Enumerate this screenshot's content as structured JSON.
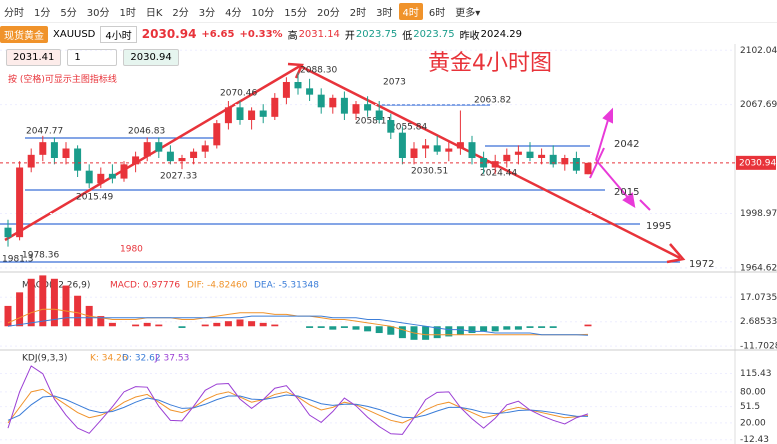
{
  "toolbar": {
    "periods": [
      "分时",
      "1分",
      "5分",
      "30分",
      "1时",
      "日K",
      "2分",
      "3分",
      "4分",
      "10分",
      "15分",
      "20分",
      "2时",
      "3时",
      "4时",
      "6时",
      "更多▾"
    ],
    "active_index": 14
  },
  "header": {
    "name": "现货黄金",
    "symbol": "XAUUSD",
    "period": "4小时",
    "price": "2030.94",
    "change": "+6.65",
    "change_pct": "+0.33%",
    "high_label": "高",
    "high": "2031.14",
    "open_label": "开",
    "open": "2023.75",
    "low_label": "低",
    "low": "2023.75",
    "prev_label": "昨收",
    "prev": "2024.29"
  },
  "order": {
    "buy": "2031.41",
    "qty": "1",
    "sell": "2030.94",
    "hint": "按 (空格)可显示主图指标线"
  },
  "main": {
    "title": "黄金4小时图",
    "ylim": [
      1962,
      2106
    ],
    "yticks": [
      2102.04,
      2067.69,
      1998.97,
      1964.62
    ],
    "last_price": 2030.94,
    "candles": [
      [
        1990,
        1995,
        1978,
        1984
      ],
      [
        1984,
        2032,
        1982,
        2028
      ],
      [
        2028,
        2040,
        2025,
        2036
      ],
      [
        2036,
        2048,
        2032,
        2044
      ],
      [
        2044,
        2047,
        2030,
        2034
      ],
      [
        2034,
        2044,
        2030,
        2040
      ],
      [
        2040,
        2042,
        2022,
        2026
      ],
      [
        2026,
        2030,
        2015,
        2018
      ],
      [
        2018,
        2028,
        2015,
        2024
      ],
      [
        2024,
        2030,
        2018,
        2021
      ],
      [
        2021,
        2032,
        2019,
        2030
      ],
      [
        2030,
        2038,
        2025,
        2035
      ],
      [
        2035,
        2047,
        2032,
        2044
      ],
      [
        2044,
        2047,
        2034,
        2038
      ],
      [
        2038,
        2042,
        2030,
        2032
      ],
      [
        2032,
        2036,
        2027,
        2034
      ],
      [
        2034,
        2040,
        2030,
        2038
      ],
      [
        2038,
        2045,
        2034,
        2042
      ],
      [
        2042,
        2058,
        2040,
        2056
      ],
      [
        2056,
        2070,
        2052,
        2066
      ],
      [
        2066,
        2070,
        2055,
        2058
      ],
      [
        2058,
        2066,
        2052,
        2064
      ],
      [
        2064,
        2068,
        2056,
        2060
      ],
      [
        2060,
        2075,
        2058,
        2072
      ],
      [
        2072,
        2085,
        2068,
        2082
      ],
      [
        2082,
        2088,
        2074,
        2078
      ],
      [
        2078,
        2084,
        2070,
        2074
      ],
      [
        2074,
        2078,
        2062,
        2066
      ],
      [
        2066,
        2074,
        2062,
        2072
      ],
      [
        2072,
        2076,
        2058,
        2062
      ],
      [
        2062,
        2070,
        2058,
        2068
      ],
      [
        2068,
        2073,
        2060,
        2064
      ],
      [
        2064,
        2070,
        2056,
        2058
      ],
      [
        2058,
        2062,
        2046,
        2050
      ],
      [
        2050,
        2054,
        2030,
        2034
      ],
      [
        2034,
        2044,
        2030,
        2040
      ],
      [
        2040,
        2046,
        2034,
        2042
      ],
      [
        2042,
        2048,
        2036,
        2038
      ],
      [
        2038,
        2044,
        2032,
        2040
      ],
      [
        2040,
        2064,
        2036,
        2044
      ],
      [
        2044,
        2048,
        2030,
        2034
      ],
      [
        2034,
        2038,
        2024,
        2028
      ],
      [
        2028,
        2036,
        2024,
        2032
      ],
      [
        2032,
        2040,
        2028,
        2036
      ],
      [
        2036,
        2042,
        2030,
        2038
      ],
      [
        2038,
        2044,
        2032,
        2034
      ],
      [
        2034,
        2040,
        2030,
        2036
      ],
      [
        2036,
        2042,
        2028,
        2030
      ],
      [
        2030,
        2036,
        2026,
        2034
      ],
      [
        2034,
        2038,
        2024,
        2026
      ],
      [
        2023.75,
        2031.14,
        2023.75,
        2030.94
      ]
    ],
    "annotations": [
      "2047.77",
      "2046.83",
      "2015.49",
      "2027.33",
      "2070.46",
      "2088.30",
      "2073",
      "2058.11",
      "2055.84",
      "2063.82",
      "2030.51",
      "2024.44",
      "1978.36",
      "1981.3",
      "1980"
    ],
    "levels": [
      "2042",
      "2015",
      "1995",
      "1972"
    ]
  },
  "macd": {
    "label": "MACD(12,26,9)",
    "texts": [
      "MACD: 0.97776",
      "DIF: -4.82460",
      "DEA: -5.31348"
    ],
    "ylim": [
      -14,
      32
    ],
    "yticks": [
      17.07354,
      2.68533,
      -11.70283
    ],
    "hist": [
      12,
      20,
      28,
      30,
      28,
      24,
      18,
      12,
      6,
      2,
      0,
      1,
      2,
      1,
      0,
      -1,
      0,
      1,
      2,
      3,
      4,
      3,
      2,
      1,
      0,
      0,
      -1,
      -1,
      -2,
      -1,
      -2,
      -3,
      -4,
      -5,
      -7,
      -8,
      -8,
      -7,
      -6,
      -5,
      -4,
      -3,
      -3,
      -2,
      -2,
      -1,
      -1,
      -1,
      0,
      0,
      0.98
    ],
    "dif": [
      2,
      5,
      8,
      10,
      10,
      9,
      8,
      6,
      5,
      4,
      4,
      4,
      5,
      5,
      5,
      4,
      4,
      5,
      6,
      7,
      8,
      8,
      8,
      7,
      7,
      6,
      6,
      5,
      4,
      4,
      3,
      2,
      1,
      0,
      -2,
      -4,
      -5,
      -5,
      -5,
      -5,
      -5,
      -5,
      -5,
      -5,
      -5,
      -5,
      -5,
      -5,
      -5,
      -5,
      -4.82
    ],
    "dea": [
      0,
      1,
      2,
      3,
      4,
      5,
      5,
      5,
      5,
      5,
      5,
      5,
      5,
      5,
      5,
      5,
      5,
      5,
      5,
      5,
      5,
      6,
      6,
      6,
      6,
      6,
      6,
      6,
      5,
      5,
      5,
      4,
      4,
      3,
      2,
      1,
      0,
      -1,
      -2,
      -2,
      -3,
      -3,
      -4,
      -4,
      -4,
      -4,
      -5,
      -5,
      -5,
      -5,
      -5.31
    ],
    "dif_color": "#f0932b",
    "dea_color": "#3b7dd8",
    "up_color": "#e8333a",
    "down_color": "#1a9c8b"
  },
  "kdj": {
    "label": "KDJ(9,3,3)",
    "texts": [
      "K: 34.26",
      "D: 32.62",
      "J: 37.53"
    ],
    "ylim": [
      -20.7,
      160.8
    ],
    "yticks": [
      115.43,
      {
        "value": 80,
        "label": "80.00"
      },
      51.5,
      {
        "value": 20,
        "label": "20.00"
      },
      -12.43
    ],
    "k": [
      20,
      50,
      80,
      85,
      70,
      55,
      40,
      30,
      35,
      45,
      60,
      70,
      75,
      60,
      45,
      40,
      50,
      65,
      75,
      80,
      70,
      60,
      65,
      75,
      80,
      70,
      55,
      45,
      50,
      60,
      55,
      45,
      35,
      25,
      20,
      30,
      45,
      55,
      60,
      50,
      40,
      30,
      35,
      45,
      50,
      45,
      40,
      35,
      30,
      32,
      34.26
    ],
    "d": [
      25,
      35,
      55,
      70,
      72,
      65,
      55,
      45,
      40,
      42,
      50,
      60,
      68,
      64,
      55,
      48,
      49,
      56,
      65,
      72,
      72,
      66,
      65,
      69,
      74,
      72,
      65,
      57,
      54,
      56,
      56,
      52,
      46,
      38,
      31,
      30,
      35,
      43,
      50,
      50,
      46,
      40,
      38,
      40,
      44,
      45,
      43,
      40,
      36,
      33,
      32.62
    ],
    "j": [
      10,
      80,
      130,
      115,
      66,
      35,
      10,
      0,
      25,
      51,
      80,
      90,
      89,
      52,
      25,
      24,
      52,
      83,
      95,
      96,
      66,
      48,
      65,
      87,
      92,
      66,
      35,
      21,
      42,
      68,
      53,
      31,
      13,
      -1,
      -2,
      30,
      65,
      79,
      80,
      50,
      28,
      10,
      29,
      55,
      62,
      45,
      34,
      25,
      18,
      30,
      37.53
    ],
    "k_color": "#f0932b",
    "d_color": "#3b7dd8",
    "j_color": "#9b3fd4"
  }
}
